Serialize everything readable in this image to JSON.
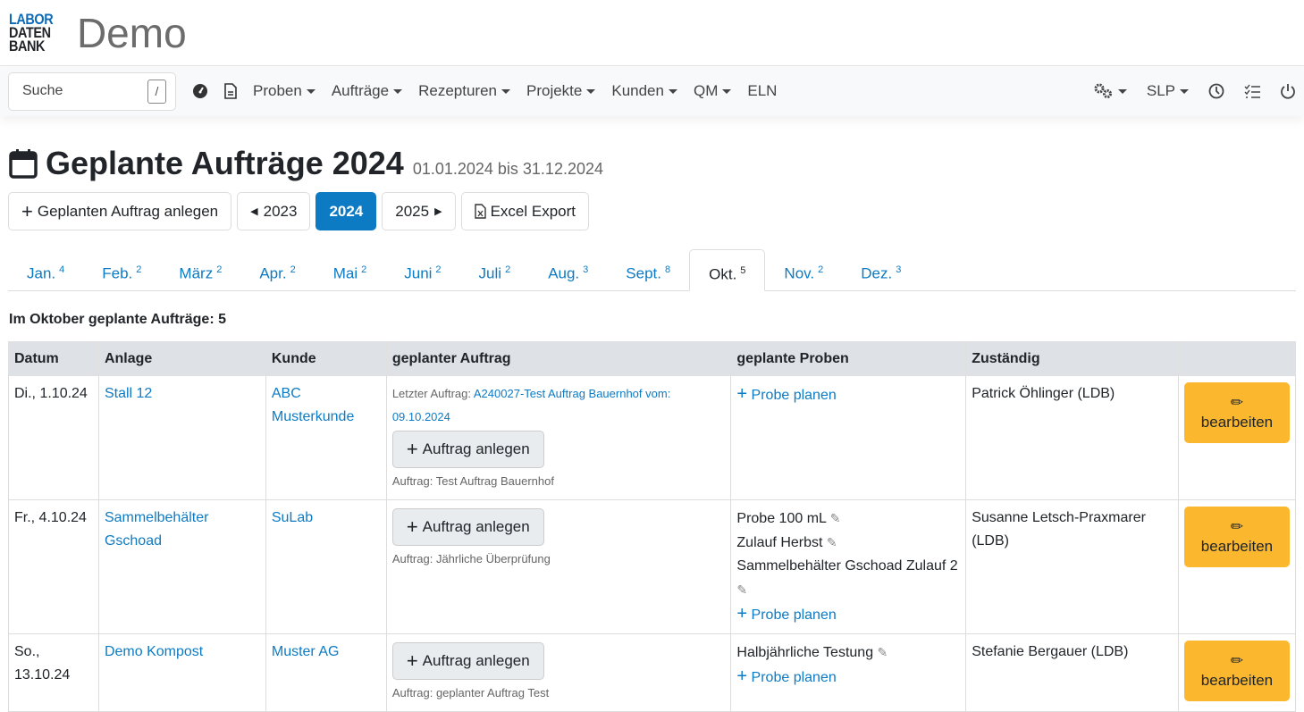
{
  "header": {
    "logo": [
      "LABOR",
      "DATEN",
      "BANK"
    ],
    "app_name": "Demo"
  },
  "nav": {
    "search_placeholder": "Suche",
    "search_shortcut": "/",
    "icons": [
      "dashboard-icon",
      "document-icon"
    ],
    "menus": [
      "Proben",
      "Aufträge",
      "Rezepturen",
      "Projekte",
      "Kunden",
      "QM"
    ],
    "eln": "ELN",
    "user": "SLP"
  },
  "page": {
    "title": "Geplante Aufträge 2024",
    "range": "01.01.2024 bis 31.12.2024",
    "buttons": {
      "new": "Geplanten Auftrag anlegen",
      "prev": "2023",
      "current": "2024",
      "next": "2025",
      "export": "Excel Export"
    },
    "count_label": "Im Oktober geplante Aufträge: 5"
  },
  "tabs": [
    {
      "label": "Jan.",
      "count": "4"
    },
    {
      "label": "Feb.",
      "count": "2"
    },
    {
      "label": "März",
      "count": "2"
    },
    {
      "label": "Apr.",
      "count": "2"
    },
    {
      "label": "Mai",
      "count": "2"
    },
    {
      "label": "Juni",
      "count": "2"
    },
    {
      "label": "Juli",
      "count": "2"
    },
    {
      "label": "Aug.",
      "count": "3"
    },
    {
      "label": "Sept.",
      "count": "8"
    },
    {
      "label": "Okt.",
      "count": "5",
      "active": true
    },
    {
      "label": "Nov.",
      "count": "2"
    },
    {
      "label": "Dez.",
      "count": "3"
    }
  ],
  "table": {
    "headers": [
      "Datum",
      "Anlage",
      "Kunde",
      "geplanter Auftrag",
      "geplante Proben",
      "Zuständig",
      ""
    ],
    "action_new": "Auftrag anlegen",
    "action_plan": "Probe planen",
    "edit": "bearbeiten",
    "rows": [
      {
        "datum": "Di., 1.10.24",
        "anlage": "Stall 12",
        "kunde": "ABC Musterkunde",
        "last_label": "Letzter Auftrag:",
        "last_link": "A240027-Test Auftrag Bauernhof vom: 09.10.2024",
        "auftrag": "Auftrag: Test Auftrag Bauernhof",
        "proben": [],
        "zustaendig": "Patrick Öhlinger (LDB)"
      },
      {
        "datum": "Fr., 4.10.24",
        "anlage": "Sammelbehälter Gschoad",
        "kunde": "SuLab",
        "auftrag": "Auftrag: Jährliche Überprüfung",
        "proben": [
          "Probe 100 mL",
          "Zulauf Herbst",
          "Sammelbehälter Gschoad Zulauf 2"
        ],
        "zustaendig": "Susanne Letsch-Praxmarer (LDB)"
      },
      {
        "datum": "So., 13.10.24",
        "anlage": "Demo Kompost",
        "kunde": "Muster AG",
        "auftrag": "Auftrag: geplanter Auftrag Test",
        "proben": [
          "Halbjährliche Testung"
        ],
        "zustaendig": "Stefanie Bergauer (LDB)"
      }
    ]
  }
}
